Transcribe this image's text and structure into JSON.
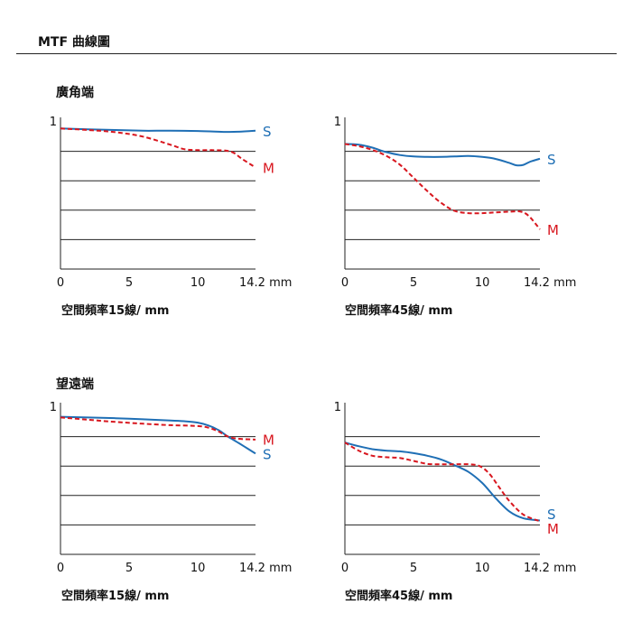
{
  "page": {
    "title": "MTF 曲線圖"
  },
  "sections": {
    "wide": {
      "title": "廣角端"
    },
    "tele": {
      "title": "望遠端"
    }
  },
  "captions": {
    "lp15": "空間頻率15線/ mm",
    "lp45": "空間頻率45線/ mm"
  },
  "colors": {
    "S": "#1f6fb5",
    "M": "#d8171f",
    "axis": "#222222"
  },
  "chart_data": [
    {
      "id": "wide-15",
      "type": "line",
      "section": "wide",
      "xlabel": "",
      "ylabel": "",
      "xlim": [
        0,
        14.2
      ],
      "ylim": [
        0,
        1
      ],
      "xticks": [
        0,
        5,
        10,
        14.2
      ],
      "xtick_labels": [
        "0",
        "5",
        "10",
        "14.2 mm"
      ],
      "yticks_label": "1",
      "grid_y": [
        0.2,
        0.4,
        0.6,
        0.8
      ],
      "caption": "空間頻率15線/ mm",
      "series": [
        {
          "name": "S",
          "style": "solid",
          "x": [
            0,
            2,
            4,
            6,
            8,
            10,
            12,
            13,
            14.2
          ],
          "y": [
            0.955,
            0.95,
            0.945,
            0.94,
            0.94,
            0.938,
            0.932,
            0.933,
            0.94
          ]
        },
        {
          "name": "M",
          "style": "dashed",
          "x": [
            0,
            2,
            4,
            6,
            8,
            9,
            10,
            11,
            12,
            12.6,
            13.2,
            14.2
          ],
          "y": [
            0.955,
            0.945,
            0.93,
            0.9,
            0.845,
            0.815,
            0.808,
            0.808,
            0.805,
            0.79,
            0.75,
            0.69
          ]
        }
      ]
    },
    {
      "id": "wide-45",
      "type": "line",
      "section": "wide",
      "xlabel": "",
      "ylabel": "",
      "xlim": [
        0,
        14.2
      ],
      "ylim": [
        0,
        1
      ],
      "xticks": [
        0,
        5,
        10,
        14.2
      ],
      "xtick_labels": [
        "0",
        "5",
        "10",
        "14.2 mm"
      ],
      "yticks_label": "1",
      "grid_y": [
        0.2,
        0.4,
        0.6,
        0.8
      ],
      "caption": "空間頻率45線/ mm",
      "series": [
        {
          "name": "S",
          "style": "solid",
          "x": [
            0,
            1,
            2,
            3,
            4,
            5,
            6,
            7,
            8,
            9,
            10,
            11,
            12,
            12.5,
            13,
            13.5,
            14.2
          ],
          "y": [
            0.85,
            0.845,
            0.825,
            0.795,
            0.775,
            0.765,
            0.762,
            0.762,
            0.765,
            0.768,
            0.762,
            0.748,
            0.72,
            0.705,
            0.708,
            0.73,
            0.75
          ]
        },
        {
          "name": "M",
          "style": "dashed",
          "x": [
            0,
            1,
            2,
            3,
            4,
            5,
            6,
            7,
            8,
            9,
            10,
            11,
            12,
            12.8,
            13.4,
            14.2
          ],
          "y": [
            0.85,
            0.835,
            0.81,
            0.77,
            0.71,
            0.62,
            0.53,
            0.45,
            0.395,
            0.38,
            0.38,
            0.385,
            0.39,
            0.39,
            0.36,
            0.27
          ]
        }
      ]
    },
    {
      "id": "tele-15",
      "type": "line",
      "section": "tele",
      "xlabel": "",
      "ylabel": "",
      "xlim": [
        0,
        14.2
      ],
      "ylim": [
        0,
        1
      ],
      "xticks": [
        0,
        5,
        10,
        14.2
      ],
      "xtick_labels": [
        "0",
        "5",
        "10",
        "14.2 mm"
      ],
      "yticks_label": "1",
      "grid_y": [
        0.2,
        0.4,
        0.6,
        0.8
      ],
      "caption": "空間頻率15線/ mm",
      "series": [
        {
          "name": "S",
          "style": "solid",
          "x": [
            0,
            2,
            4,
            6,
            8,
            9,
            10,
            10.8,
            11.5,
            12.2,
            13,
            13.6,
            14.2
          ],
          "y": [
            0.935,
            0.93,
            0.925,
            0.918,
            0.91,
            0.905,
            0.895,
            0.875,
            0.845,
            0.8,
            0.755,
            0.72,
            0.685
          ]
        },
        {
          "name": "M",
          "style": "dashed",
          "x": [
            0,
            2,
            4,
            6,
            8,
            10,
            10.8,
            11.5,
            12.2,
            13,
            14.2
          ],
          "y": [
            0.93,
            0.915,
            0.9,
            0.888,
            0.878,
            0.872,
            0.86,
            0.835,
            0.8,
            0.785,
            0.78
          ]
        }
      ]
    },
    {
      "id": "tele-45",
      "type": "line",
      "section": "tele",
      "xlabel": "",
      "ylabel": "",
      "xlim": [
        0,
        14.2
      ],
      "ylim": [
        0,
        1
      ],
      "xticks": [
        0,
        5,
        10,
        14.2
      ],
      "xtick_labels": [
        "0",
        "5",
        "10",
        "14.2 mm"
      ],
      "yticks_label": "1",
      "grid_y": [
        0.2,
        0.4,
        0.6,
        0.8
      ],
      "caption": "空間頻率45線/ mm",
      "series": [
        {
          "name": "S",
          "style": "solid",
          "x": [
            0,
            1,
            2,
            3,
            4,
            5,
            6,
            7,
            8,
            9,
            10,
            11,
            12,
            13,
            14.2
          ],
          "y": [
            0.76,
            0.735,
            0.715,
            0.705,
            0.7,
            0.688,
            0.67,
            0.645,
            0.605,
            0.56,
            0.485,
            0.38,
            0.29,
            0.245,
            0.23
          ]
        },
        {
          "name": "M",
          "style": "dashed",
          "x": [
            0,
            1,
            2,
            3,
            4,
            5,
            6,
            7,
            8,
            9,
            9.8,
            10.5,
            11.2,
            12,
            13,
            14.2
          ],
          "y": [
            0.76,
            0.705,
            0.67,
            0.66,
            0.655,
            0.635,
            0.615,
            0.612,
            0.612,
            0.612,
            0.6,
            0.55,
            0.46,
            0.36,
            0.27,
            0.225
          ]
        }
      ]
    }
  ]
}
